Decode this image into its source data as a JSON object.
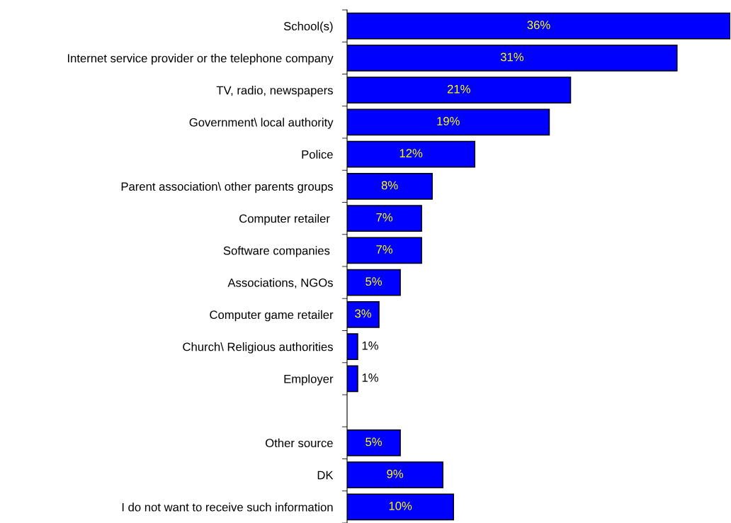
{
  "chart_data": {
    "type": "bar",
    "orientation": "horizontal",
    "categories": [
      "School(s)",
      "Internet service provider or the telephone company",
      "TV, radio, newspapers",
      "Government\\ local authority",
      "Police",
      "Parent association\\ other parents groups",
      "Computer retailer ",
      "Software companies ",
      "Associations, NGOs",
      "Computer game retailer",
      "Church\\ Religious authorities",
      "Employer",
      null,
      "Other source",
      "DK",
      "I do not want to receive such information"
    ],
    "values": [
      36,
      31,
      21,
      19,
      12,
      8,
      7,
      7,
      5,
      3,
      1,
      1,
      null,
      5,
      9,
      10
    ],
    "value_labels": [
      "36%",
      "31%",
      "21%",
      "19%",
      "12%",
      "8%",
      "7%",
      "7%",
      "5%",
      "3%",
      "1%",
      "1%",
      null,
      "5%",
      "9%",
      "10%"
    ],
    "color": "#0000ff",
    "grid": false,
    "legend": false
  }
}
